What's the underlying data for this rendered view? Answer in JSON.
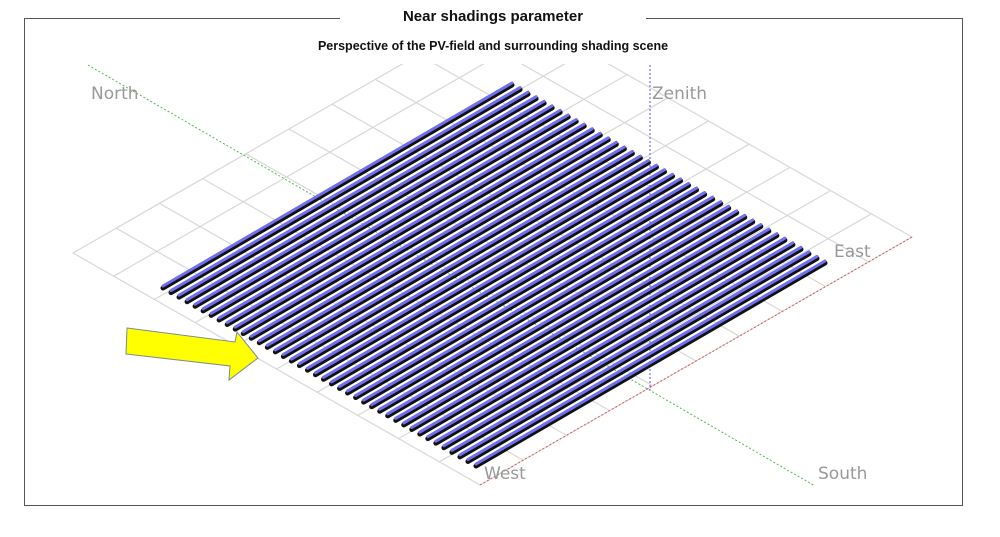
{
  "panel": {
    "title": "Near shadings parameter",
    "subtitle": "Perspective of the PV-field and surrounding shading scene"
  },
  "scene": {
    "labels": {
      "north": "North",
      "zenith": "Zenith",
      "east": "East",
      "west": "West",
      "south": "South"
    },
    "colors": {
      "panel": "#6f6ff0",
      "panel_edge": "#111111",
      "grid": "#d8d8d8",
      "north_south_axis": "#55bb55",
      "east_west_axis": "#dd5555",
      "zenith_axis": "#5555ee",
      "arrow": "#ffff00",
      "label": "#999999"
    },
    "pv_row_count": 40,
    "arrow_icon": "yellow-arrow-right"
  }
}
